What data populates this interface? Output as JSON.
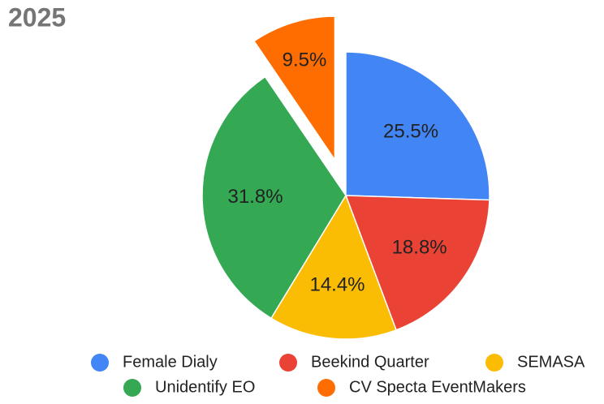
{
  "chart_data": {
    "type": "pie",
    "title": "2025",
    "categories": [
      "Female Dialy",
      "Beekind Quarter",
      "SEMASA",
      "Unidentify EO",
      "CV Specta EventMakers"
    ],
    "values": [
      25.5,
      18.8,
      14.4,
      31.8,
      9.5
    ],
    "value_labels": [
      "25.5%",
      "18.8%",
      "14.4%",
      "31.8%",
      "9.5%"
    ],
    "colors": [
      "#4285f4",
      "#ea4335",
      "#fbbc04",
      "#34a853",
      "#ff6d01"
    ],
    "exploded": [
      false,
      false,
      false,
      false,
      true
    ],
    "legend": "bottom"
  }
}
